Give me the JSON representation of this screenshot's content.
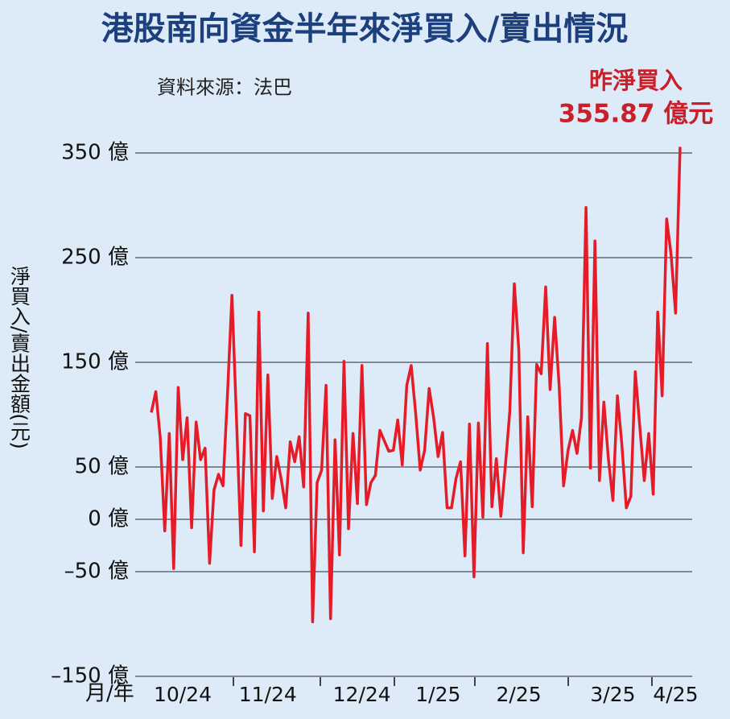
{
  "chart_data": {
    "type": "line",
    "title": "港股南向資金半年來淨買入/賣出情況",
    "source": "資料來源：法巴",
    "y_label": "淨買入/賣出金額(元)",
    "x_label": "月/年",
    "annotation": [
      "昨淨買入",
      "355.87 億元"
    ],
    "color": "#e51c28",
    "grid": true,
    "ylim": [
      -150,
      370
    ],
    "yticks": [
      {
        "value": 350,
        "label": "350 億"
      },
      {
        "value": 250,
        "label": "250 億"
      },
      {
        "value": 150,
        "label": "150 億"
      },
      {
        "value": 50,
        "label": "50 億"
      },
      {
        "value": 0,
        "label": "0 億"
      },
      {
        "value": -50,
        "label": "–50 億"
      },
      {
        "value": -150,
        "label": "–150 億"
      }
    ],
    "categories": [
      null,
      null,
      null,
      null,
      null,
      null,
      null,
      "10/24",
      null,
      null,
      null,
      null,
      null,
      null,
      null,
      null,
      null,
      null,
      null,
      null,
      null,
      null,
      null,
      null,
      null,
      null,
      "11/24",
      null,
      null,
      null,
      null,
      null,
      null,
      null,
      null,
      null,
      null,
      null,
      null,
      null,
      null,
      null,
      null,
      null,
      null,
      null,
      null,
      "12/24",
      null,
      null,
      null,
      null,
      null,
      null,
      null,
      null,
      null,
      null,
      null,
      null,
      null,
      null,
      null,
      null,
      "1/25",
      null,
      null,
      null,
      null,
      null,
      null,
      null,
      null,
      null,
      null,
      null,
      null,
      null,
      null,
      null,
      null,
      null,
      "2/25",
      null,
      null,
      null,
      null,
      null,
      null,
      null,
      null,
      null,
      null,
      null,
      null,
      null,
      null,
      null,
      null,
      null,
      null,
      null,
      null,
      "3/25",
      null,
      null,
      null,
      null,
      null,
      null,
      null,
      null,
      null,
      null,
      null,
      null,
      null,
      "4/25",
      null
    ],
    "values": [
      102,
      122,
      78,
      -11,
      82,
      -47,
      126,
      57,
      97,
      -8,
      93,
      57,
      68,
      -42,
      28,
      43,
      32,
      120,
      214,
      97,
      -25,
      101,
      99,
      -31,
      198,
      8,
      138,
      20,
      60,
      38,
      11,
      74,
      55,
      79,
      31,
      197,
      -98,
      35,
      47,
      128,
      -95,
      76,
      -34,
      151,
      -9,
      82,
      15,
      147,
      14,
      35,
      42,
      85,
      75,
      65,
      66,
      95,
      52,
      128,
      147,
      101,
      47,
      66,
      125,
      97,
      60,
      83,
      11,
      11,
      39,
      55,
      -35,
      91,
      -55,
      92,
      2,
      168,
      12,
      58,
      3,
      51,
      103,
      225,
      162,
      -32,
      98,
      12,
      148,
      139,
      222,
      124,
      193,
      128,
      32,
      66,
      85,
      63,
      97,
      298,
      49,
      266,
      37,
      112,
      58,
      18,
      118,
      72,
      11,
      22,
      141,
      89,
      37,
      82,
      24,
      198,
      118,
      287,
      252,
      197,
      355.87
    ]
  }
}
